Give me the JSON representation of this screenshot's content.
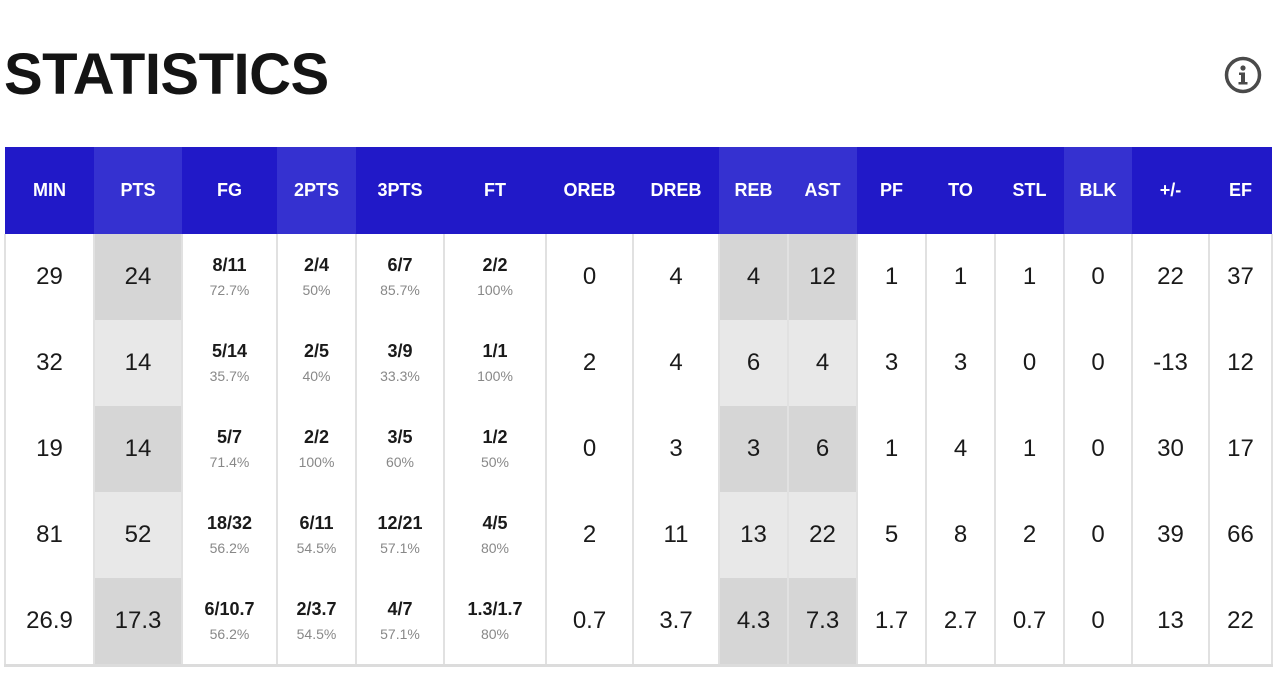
{
  "title": "STATISTICS",
  "columns": [
    "MIN",
    "PTS",
    "FG",
    "2PTS",
    "3PTS",
    "FT",
    "OREB",
    "DREB",
    "REB",
    "AST",
    "PF",
    "TO",
    "STL",
    "BLK",
    "+/-",
    "EF"
  ],
  "rows": [
    {
      "min": "29",
      "pts": "24",
      "fg": "8/11",
      "fg_pct": "72.7%",
      "two": "2/4",
      "two_pct": "50%",
      "three": "6/7",
      "three_pct": "85.7%",
      "ft": "2/2",
      "ft_pct": "100%",
      "oreb": "0",
      "dreb": "4",
      "reb": "4",
      "ast": "12",
      "pf": "1",
      "to": "1",
      "stl": "1",
      "blk": "0",
      "pm": "22",
      "ef": "37"
    },
    {
      "min": "32",
      "pts": "14",
      "fg": "5/14",
      "fg_pct": "35.7%",
      "two": "2/5",
      "two_pct": "40%",
      "three": "3/9",
      "three_pct": "33.3%",
      "ft": "1/1",
      "ft_pct": "100%",
      "oreb": "2",
      "dreb": "4",
      "reb": "6",
      "ast": "4",
      "pf": "3",
      "to": "3",
      "stl": "0",
      "blk": "0",
      "pm": "-13",
      "ef": "12"
    },
    {
      "min": "19",
      "pts": "14",
      "fg": "5/7",
      "fg_pct": "71.4%",
      "two": "2/2",
      "two_pct": "100%",
      "three": "3/5",
      "three_pct": "60%",
      "ft": "1/2",
      "ft_pct": "50%",
      "oreb": "0",
      "dreb": "3",
      "reb": "3",
      "ast": "6",
      "pf": "1",
      "to": "4",
      "stl": "1",
      "blk": "0",
      "pm": "30",
      "ef": "17"
    },
    {
      "min": "81",
      "pts": "52",
      "fg": "18/32",
      "fg_pct": "56.2%",
      "two": "6/11",
      "two_pct": "54.5%",
      "three": "12/21",
      "three_pct": "57.1%",
      "ft": "4/5",
      "ft_pct": "80%",
      "oreb": "2",
      "dreb": "11",
      "reb": "13",
      "ast": "22",
      "pf": "5",
      "to": "8",
      "stl": "2",
      "blk": "0",
      "pm": "39",
      "ef": "66"
    },
    {
      "min": "26.9",
      "pts": "17.3",
      "fg": "6/10.7",
      "fg_pct": "56.2%",
      "two": "2/3.7",
      "two_pct": "54.5%",
      "three": "4/7",
      "three_pct": "57.1%",
      "ft": "1.3/1.7",
      "ft_pct": "80%",
      "oreb": "0.7",
      "dreb": "3.7",
      "reb": "4.3",
      "ast": "7.3",
      "pf": "1.7",
      "to": "2.7",
      "stl": "0.7",
      "blk": "0",
      "pm": "13",
      "ef": "22"
    }
  ],
  "colors": {
    "header_bg": "#2119c8",
    "header_alt_bg": "#3531d0",
    "highlight_light": "#e8e8e8",
    "highlight_dark": "#d6d6d6"
  },
  "icons": {
    "info": "info-circle-icon"
  }
}
